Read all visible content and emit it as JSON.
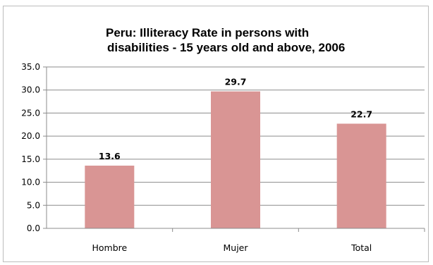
{
  "chart_data": {
    "type": "bar",
    "title": "Peru: Illiteracy Rate in persons with disabilities - 15 years old and above, 2006",
    "title_lines": [
      "Peru: Illiteracy Rate in persons with",
      "disabilities - 15 years old and above, 2006"
    ],
    "categories": [
      "Hombre",
      "Mujer",
      "Total"
    ],
    "values": [
      13.6,
      29.7,
      22.7
    ],
    "value_labels": [
      "13.6",
      "29.7",
      "22.7"
    ],
    "xlabel": "",
    "ylabel": "",
    "ylim": [
      0,
      35
    ],
    "yticks": [
      "0.0",
      "5.0",
      "10.0",
      "15.0",
      "20.0",
      "25.0",
      "30.0",
      "35.0"
    ],
    "grid": true,
    "legend": "none",
    "bar_color": "#d99594"
  }
}
